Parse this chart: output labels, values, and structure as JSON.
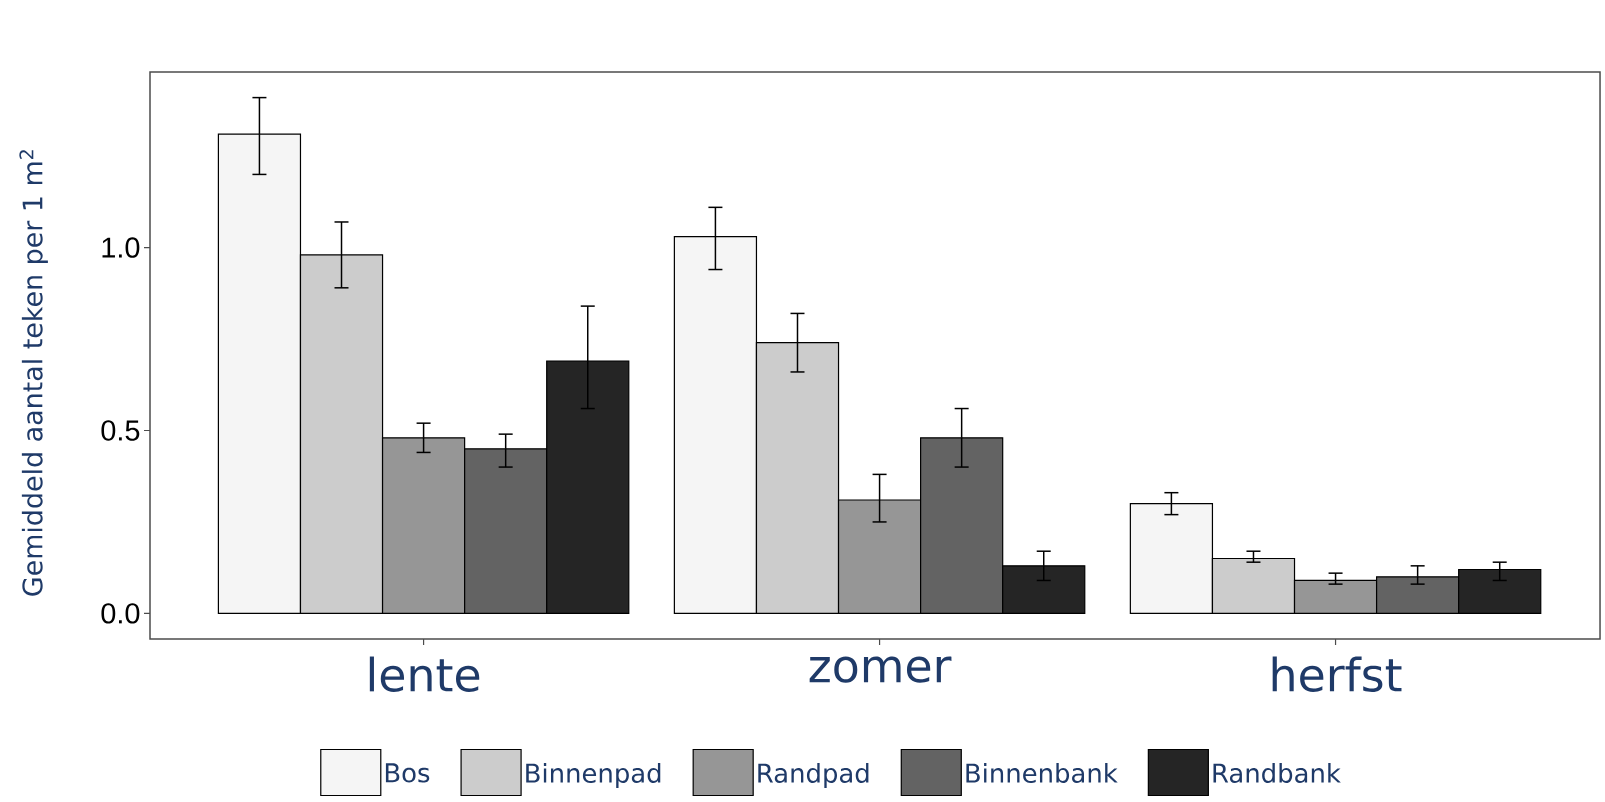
{
  "chart_data": {
    "type": "bar",
    "ylabel": "Gemiddeld aantal teken per 1 m$^{2}$",
    "categories": [
      "lente",
      "zomer",
      "herfst"
    ],
    "series": [
      {
        "name": "Bos",
        "color": "#f5f5f5",
        "values": [
          1.31,
          1.03,
          0.3
        ],
        "errors": [
          [
            1.2,
            1.41
          ],
          [
            0.94,
            1.11
          ],
          [
            0.27,
            0.33
          ]
        ]
      },
      {
        "name": "Binnenpad",
        "color": "#cccccc",
        "values": [
          0.98,
          0.74,
          0.15
        ],
        "errors": [
          [
            0.89,
            1.07
          ],
          [
            0.66,
            0.82
          ],
          [
            0.14,
            0.17
          ]
        ]
      },
      {
        "name": "Randpad",
        "color": "#969696",
        "values": [
          0.48,
          0.31,
          0.09
        ],
        "errors": [
          [
            0.44,
            0.52
          ],
          [
            0.25,
            0.38
          ],
          [
            0.08,
            0.11
          ]
        ]
      },
      {
        "name": "Binnenbank",
        "color": "#636363",
        "values": [
          0.45,
          0.48,
          0.1
        ],
        "errors": [
          [
            0.4,
            0.49
          ],
          [
            0.4,
            0.56
          ],
          [
            0.08,
            0.13
          ]
        ]
      },
      {
        "name": "Randbank",
        "color": "#252525",
        "values": [
          0.69,
          0.13,
          0.12
        ],
        "errors": [
          [
            0.56,
            0.84
          ],
          [
            0.09,
            0.17
          ],
          [
            0.09,
            0.14
          ]
        ]
      }
    ],
    "ylim": [
      -0.07,
      1.48
    ],
    "yticks": [
      {
        "value": 0,
        "label": "0.0"
      },
      0.5,
      {
        "value": 1,
        "label": "1.0"
      }
    ],
    "grid": false,
    "legend": "bottom"
  }
}
